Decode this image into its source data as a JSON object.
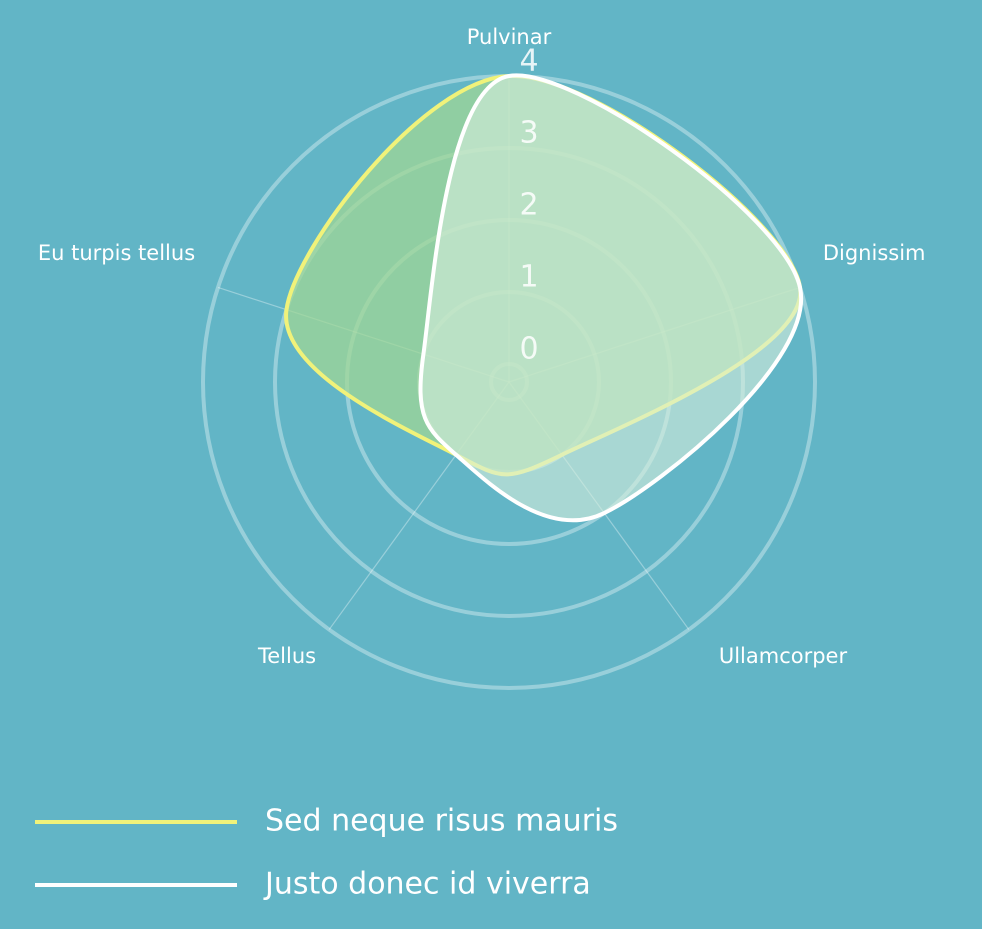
{
  "chart_data": {
    "type": "radar",
    "categories": [
      "Pulvinar",
      "Dignissim",
      "Ullamcorper",
      "Tellus",
      "Eu turpis tellus"
    ],
    "series": [
      {
        "name": "Sed neque risus mauris",
        "color": "#f0f27a",
        "fill": "rgba(160,215,150,0.75)",
        "values": [
          4,
          4,
          1,
          1,
          3
        ]
      },
      {
        "name": "Justo donec id viverra",
        "color": "#ffffff",
        "fill": "rgba(215,238,220,0.6)",
        "values": [
          4,
          4,
          2,
          1,
          1
        ]
      }
    ],
    "ylim": [
      -0.25,
      4
    ],
    "yticks": [
      0,
      1,
      2,
      3,
      4
    ],
    "grid": true,
    "legend": "bottom-left"
  }
}
